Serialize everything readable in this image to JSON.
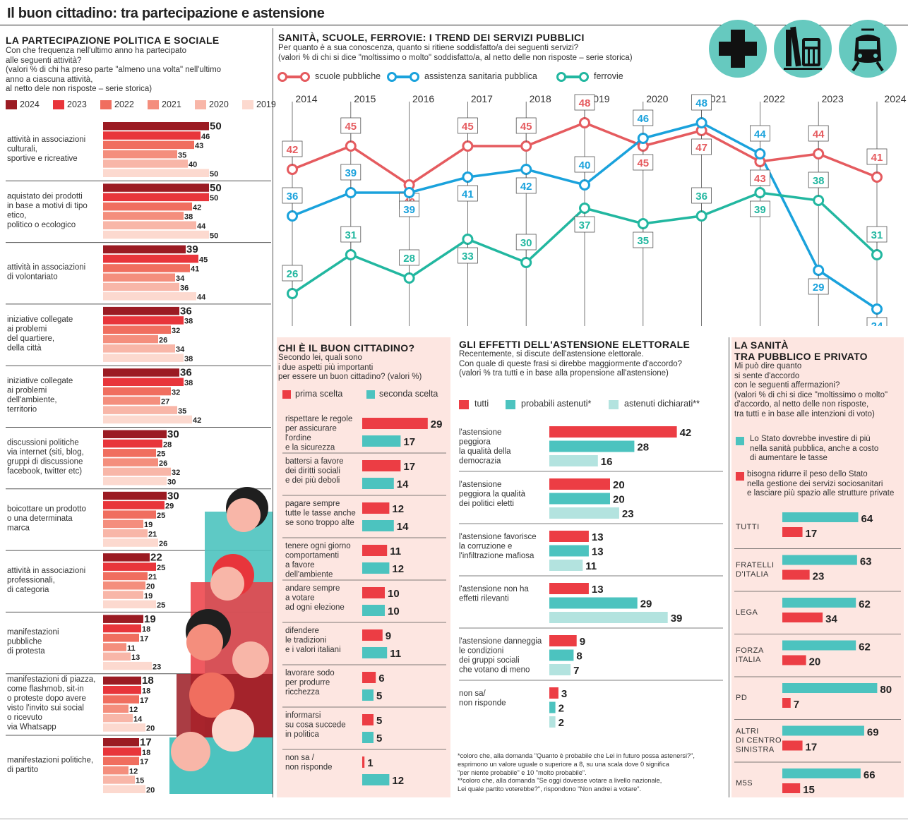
{
  "title": "Il buon cittadino: tra partecipazione e astensione",
  "colors": {
    "y2024": "#9b1b23",
    "y2023": "#e8353b",
    "y2022": "#f06e5f",
    "y2021": "#f48e7d",
    "y2020": "#f8b6a8",
    "y2019": "#fcd9cf",
    "red": "#ec3d44",
    "teal": "#4cc3bf",
    "teal_light": "#b3e3df",
    "scuole": "#e55b5f",
    "sanita": "#1aa2dc",
    "ferrovie": "#22b7a0",
    "pink_bg": "#fde6e1",
    "icon_bg": "#66c9bf"
  },
  "icons": [
    "cross-icon",
    "books-calculator-icon",
    "train-icon"
  ],
  "participation": {
    "heading": "LA PARTECIPAZIONE POLITICA E SOCIALE",
    "sub": [
      "Con che frequenza nell'ultimo anno ha partecipato",
      "alle seguenti attività?",
      "(valori % di chi ha preso parte \"almeno una volta\" nell'ultimo",
      "anno a ciascuna attività,",
      "al netto dele non risposte – serie storica)"
    ],
    "legend": [
      "2024",
      "2023",
      "2022",
      "2021",
      "2020",
      "2019"
    ]
  },
  "trend": {
    "heading": "SANITÀ, SCUOLE, FERROVIE: I TREND DEI SERVIZI PUBBLICI",
    "sub": [
      "Per quanto è a sua conoscenza, quanto si ritiene soddisfatto/a dei seguenti servizi?",
      "(valori % di chi si dice \"moltissimo o molto\" soddisfatto/a, al netto delle non risposte – serie storica)"
    ],
    "legend": [
      "scuole pubbliche",
      "assistenza sanitaria pubblica",
      "ferrovie"
    ]
  },
  "good_citizen": {
    "heading": "CHI È IL BUON CITTADINO?",
    "sub": [
      "Secondo lei, quali sono",
      "i due aspetti più importanti",
      "per essere un buon cittadino? (valori %)"
    ],
    "legend": [
      "prima scelta",
      "seconda scelta"
    ]
  },
  "abstention": {
    "heading": "GLI EFFETTI DELL'ASTENSIONE ELETTORALE",
    "sub": [
      "Recentemente, si discute dell'astensione elettorale.",
      "Con quale di queste frasi si direbbe maggiormente d'accordo?",
      "(valori % tra tutti e in base alla propensione all'astensione)"
    ],
    "legend": [
      "tutti",
      "probabili astenuti*",
      "astenuti dichiarati**"
    ],
    "footnotes": [
      "*coloro che, alla domanda \"Quanto è probabile che Lei in futuro possa astenersi?\",",
      "esprimono un valore uguale o superiore a 8, su una scala dove 0 significa",
      "\"per niente probabile\" e 10 \"molto probabile\".",
      "**coloro che, alla domanda \"Se oggi dovesse votare a livello nazionale,",
      "Lei quale partito voterebbe?\", rispondono \"Non andrei a votare\"."
    ]
  },
  "health": {
    "heading": [
      "LA SANITÀ",
      "TRA PUBBLICO E PRIVATO"
    ],
    "sub": [
      "Mi può dire quanto",
      "si sente d'accordo",
      "con le seguenti affermazioni?",
      "(valori % di chi si dice \"moltissimo o molto\"",
      "d'accordo, al netto delle non risposte,",
      "tra tutti e in base alle intenzioni di voto)"
    ],
    "legend": [
      [
        "Lo Stato dovrebbe investire di più",
        "nella sanità pubblica, anche a costo",
        "di aumentare le tasse"
      ],
      [
        "bisogna ridurre il peso dello Stato",
        "nella gestione dei servizi sociosanitari",
        "e lasciare più spazio alle strutture private"
      ]
    ]
  },
  "chart_data": [
    {
      "type": "bar",
      "title": "LA PARTECIPAZIONE POLITICA E SOCIALE",
      "series_names": [
        "2024",
        "2023",
        "2022",
        "2021",
        "2020",
        "2019"
      ],
      "categories": [
        {
          "label": [
            "attività in associazioni",
            "culturali,",
            "sportive e ricreative"
          ],
          "values": [
            50,
            46,
            43,
            35,
            40,
            50
          ]
        },
        {
          "label": [
            "aquistato dei prodotti",
            "in base a motivi di tipo",
            "etico,",
            "politico o ecologico"
          ],
          "values": [
            50,
            50,
            42,
            38,
            44,
            50
          ]
        },
        {
          "label": [
            "attività in associazioni",
            "di volontariato"
          ],
          "values": [
            39,
            45,
            41,
            34,
            36,
            44
          ]
        },
        {
          "label": [
            "iniziative collegate",
            "ai problemi",
            "del quartiere,",
            "della città"
          ],
          "values": [
            36,
            38,
            32,
            26,
            34,
            38
          ]
        },
        {
          "label": [
            "iniziative collegate",
            "ai problemi",
            "dell'ambiente,",
            "territorio"
          ],
          "values": [
            36,
            38,
            32,
            27,
            35,
            42
          ]
        },
        {
          "label": [
            "discussioni politiche",
            "via internet (siti, blog,",
            "gruppi di discussione",
            "facebook, twitter etc)"
          ],
          "values": [
            30,
            28,
            25,
            26,
            32,
            30
          ]
        },
        {
          "label": [
            "boicottare un prodotto",
            "o una determinata",
            "marca"
          ],
          "values": [
            30,
            29,
            25,
            19,
            21,
            26
          ]
        },
        {
          "label": [
            "attività in associazioni",
            "professionali,",
            "di categoria"
          ],
          "values": [
            22,
            25,
            21,
            20,
            19,
            25
          ]
        },
        {
          "label": [
            "manifestazioni",
            "pubbliche",
            "di protesta"
          ],
          "values": [
            19,
            18,
            17,
            11,
            13,
            23
          ]
        },
        {
          "label": [
            "manifestazioni di piazza,",
            "come flashmob, sit-in",
            "o proteste dopo avere",
            "visto l'invito sui social",
            "o ricevuto",
            "via Whatsapp"
          ],
          "values": [
            18,
            18,
            17,
            12,
            14,
            20
          ]
        },
        {
          "label": [
            "manifestazioni politiche,",
            "di partito"
          ],
          "values": [
            17,
            18,
            17,
            12,
            15,
            20
          ]
        }
      ]
    },
    {
      "type": "line",
      "title": "SANITÀ, SCUOLE, FERROVIE: I TREND DEI SERVIZI PUBBLICI",
      "x": [
        "2014",
        "2015",
        "2016",
        "2017",
        "2018",
        "2019",
        "2020",
        "2021",
        "2022",
        "2023",
        "2024"
      ],
      "series": [
        {
          "name": "scuole pubbliche",
          "values": [
            42,
            45,
            40,
            45,
            45,
            48,
            45,
            47,
            43,
            44,
            41
          ]
        },
        {
          "name": "assistenza sanitaria pubblica",
          "values": [
            36,
            39,
            39,
            41,
            42,
            40,
            46,
            48,
            44,
            29,
            24
          ]
        },
        {
          "name": "ferrovie",
          "values": [
            26,
            31,
            28,
            33,
            30,
            37,
            35,
            36,
            39,
            38,
            31
          ]
        }
      ]
    },
    {
      "type": "bar",
      "title": "CHI È IL BUON CITTADINO?",
      "series_names": [
        "prima scelta",
        "seconda scelta"
      ],
      "categories": [
        {
          "label": [
            "rispettare le regole",
            "per assicurare",
            "l'ordine",
            "e la sicurezza"
          ],
          "values": [
            29,
            17
          ]
        },
        {
          "label": [
            "battersi a favore",
            "dei diritti sociali",
            "e dei più deboli"
          ],
          "values": [
            17,
            14
          ]
        },
        {
          "label": [
            "pagare sempre",
            "tutte le tasse anche",
            "se sono troppo alte"
          ],
          "values": [
            12,
            14
          ]
        },
        {
          "label": [
            "tenere ogni giorno",
            "comportamenti",
            "a favore",
            "dell'ambiente"
          ],
          "values": [
            11,
            12
          ]
        },
        {
          "label": [
            "andare sempre",
            "a votare",
            "ad ogni elezione"
          ],
          "values": [
            10,
            10
          ]
        },
        {
          "label": [
            "difendere",
            "le tradizioni",
            "e i valori italiani"
          ],
          "values": [
            9,
            11
          ]
        },
        {
          "label": [
            "lavorare sodo",
            "per produrre",
            "ricchezza"
          ],
          "values": [
            6,
            5
          ]
        },
        {
          "label": [
            "informarsi",
            "su cosa succede",
            "in politica"
          ],
          "values": [
            5,
            5
          ]
        },
        {
          "label": [
            "non sa /",
            "non risponde"
          ],
          "values": [
            1,
            12
          ]
        }
      ]
    },
    {
      "type": "bar",
      "title": "GLI EFFETTI DELL'ASTENSIONE ELETTORALE",
      "series_names": [
        "tutti",
        "probabili astenuti*",
        "astenuti dichiarati**"
      ],
      "categories": [
        {
          "label": [
            "l'astensione",
            "peggiora",
            "la qualità della",
            "democrazia"
          ],
          "values": [
            42,
            28,
            16
          ]
        },
        {
          "label": [
            "l'astensione",
            "peggiora la qualità",
            "dei politici eletti"
          ],
          "values": [
            20,
            20,
            23
          ]
        },
        {
          "label": [
            "l'astensione favorisce",
            "la corruzione e",
            "l'infiltrazione mafiosa"
          ],
          "values": [
            13,
            13,
            11
          ]
        },
        {
          "label": [
            "l'astensione non ha",
            "effetti rilevanti"
          ],
          "values": [
            13,
            29,
            39
          ]
        },
        {
          "label": [
            "l'astensione danneggia",
            "le condizioni",
            "dei gruppi sociali",
            "che votano di meno"
          ],
          "values": [
            9,
            8,
            7
          ]
        },
        {
          "label": [
            "non sa/",
            "non risponde"
          ],
          "values": [
            3,
            2,
            2
          ]
        }
      ]
    },
    {
      "type": "bar",
      "title": "LA SANITÀ TRA PUBBLICO E PRIVATO",
      "series_names": [
        "Lo Stato dovrebbe investire di più nella sanità pubblica, anche a costo di aumentare le tasse",
        "bisogna ridurre il peso dello Stato nella gestione dei servizi sociosanitari e lasciare più spazio alle strutture private"
      ],
      "categories": [
        {
          "label": [
            "TUTTI"
          ],
          "values": [
            64,
            17
          ]
        },
        {
          "label": [
            "FRATELLI",
            "D'ITALIA"
          ],
          "values": [
            63,
            23
          ]
        },
        {
          "label": [
            "LEGA"
          ],
          "values": [
            62,
            34
          ]
        },
        {
          "label": [
            "FORZA",
            "ITALIA"
          ],
          "values": [
            62,
            20
          ]
        },
        {
          "label": [
            "PD"
          ],
          "values": [
            80,
            7
          ]
        },
        {
          "label": [
            "ALTRI",
            "DI CENTRO",
            "SINISTRA"
          ],
          "values": [
            69,
            17
          ]
        },
        {
          "label": [
            "M5S"
          ],
          "values": [
            66,
            15
          ]
        }
      ]
    }
  ]
}
